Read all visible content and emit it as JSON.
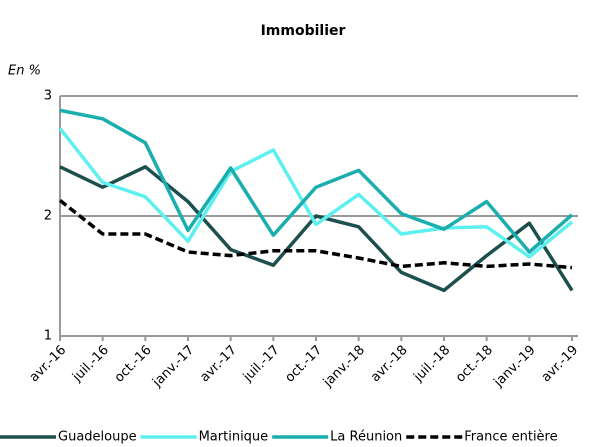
{
  "chart_data": {
    "type": "line",
    "title": "Immobilier",
    "y_label": "En %",
    "categories": [
      "avr.-16",
      "juil.-16",
      "oct.-16",
      "janv.-17",
      "avr.-17",
      "juil.-17",
      "oct.-17",
      "janv.-18",
      "avr.-18",
      "juil.-18",
      "oct.-18",
      "janv.-19",
      "avr.-19"
    ],
    "series": [
      {
        "name": "Guadeloupe",
        "color": "#1d4f4f",
        "dashed": false,
        "values": [
          2.41,
          2.24,
          2.41,
          2.12,
          1.72,
          1.59,
          2.0,
          1.91,
          1.53,
          1.38,
          1.67,
          1.94,
          1.38
        ]
      },
      {
        "name": "Martinique",
        "color": "#5ef0f0",
        "dashed": false,
        "values": [
          2.73,
          2.28,
          2.16,
          1.79,
          2.37,
          2.55,
          1.93,
          2.18,
          1.85,
          1.9,
          1.91,
          1.66,
          1.95
        ]
      },
      {
        "name": "La Réunion",
        "color": "#1aaeae",
        "dashed": false,
        "values": [
          2.88,
          2.81,
          2.61,
          1.88,
          2.4,
          1.84,
          2.24,
          2.38,
          2.02,
          1.89,
          2.12,
          1.7,
          2.01
        ]
      },
      {
        "name": "France entière",
        "color": "#000000",
        "dashed": true,
        "values": [
          2.13,
          1.85,
          1.85,
          1.7,
          1.67,
          1.71,
          1.71,
          1.65,
          1.58,
          1.61,
          1.58,
          1.6,
          1.57
        ]
      }
    ],
    "ylim": [
      1,
      3
    ],
    "yticks": [
      1,
      2,
      3
    ],
    "grid": true,
    "legend": "bottom"
  }
}
